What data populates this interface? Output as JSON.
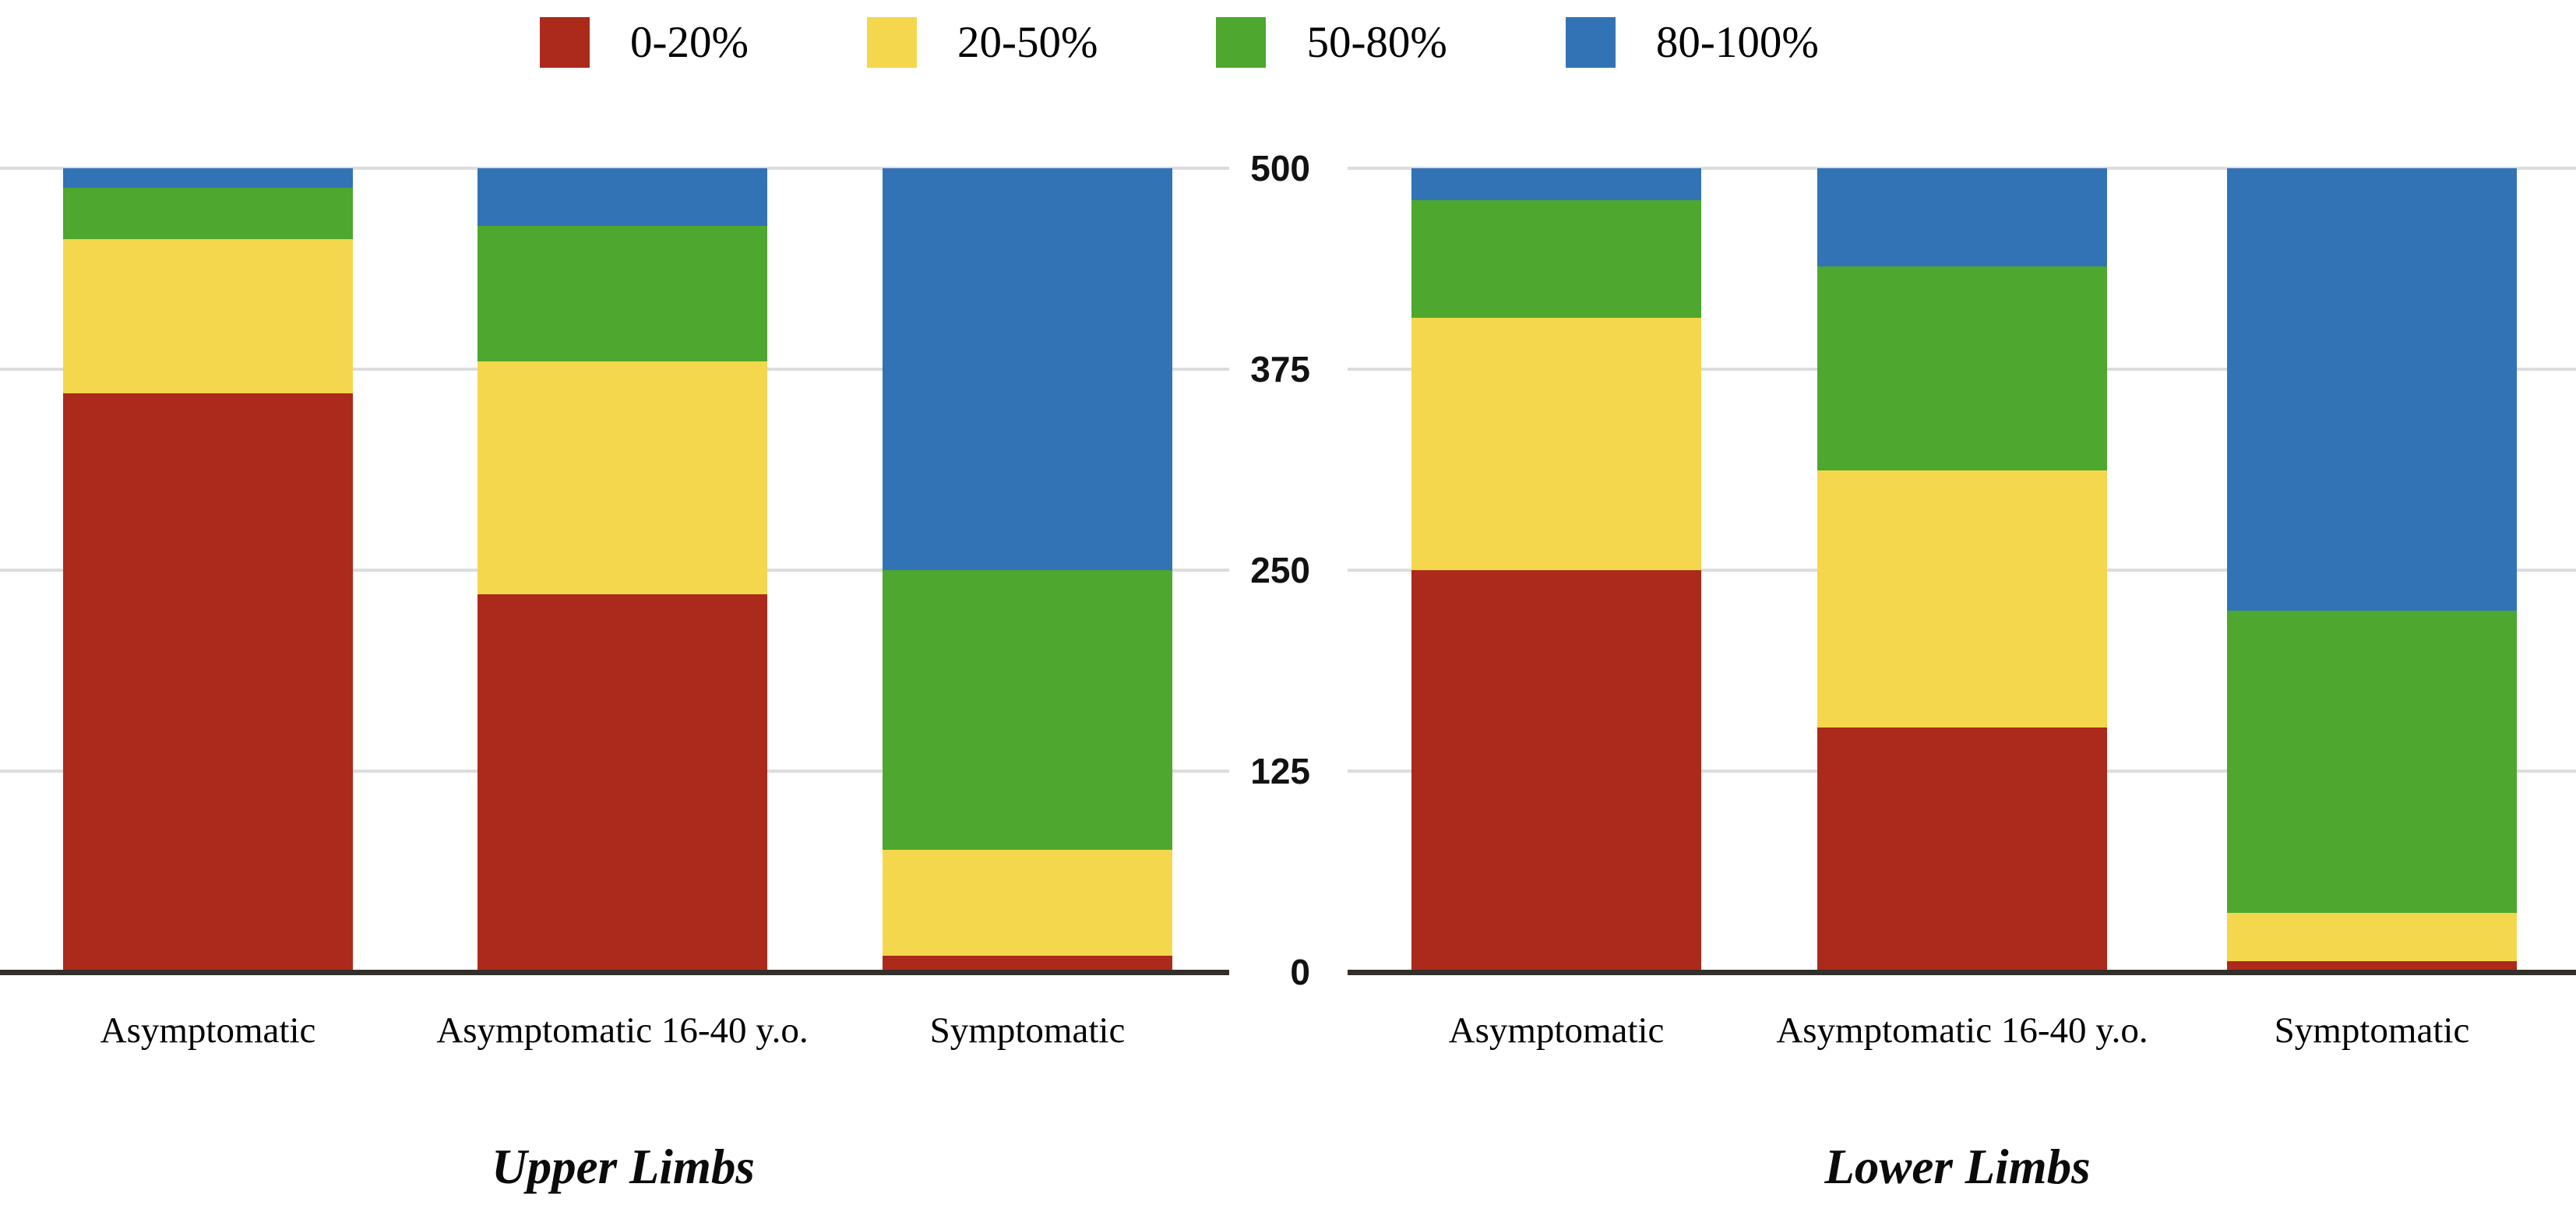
{
  "legend": {
    "items": [
      {
        "label": "0-20%",
        "color": "#ab2a1b"
      },
      {
        "label": "20-50%",
        "color": "#f5d74d"
      },
      {
        "label": "50-80%",
        "color": "#4ea72e"
      },
      {
        "label": "80-100%",
        "color": "#3273b5"
      }
    ]
  },
  "y_axis": {
    "tick_labels": [
      "0",
      "125",
      "250",
      "375",
      "500"
    ],
    "ticks": [
      0,
      125,
      250,
      375,
      500
    ]
  },
  "colors": {
    "segment_0_20": "#ab2a1b",
    "segment_20_50": "#f5d74d",
    "segment_50_80": "#4ea72e",
    "segment_80_100": "#3273b5",
    "gridline": "#dcdcdc",
    "axis_line": "#33302c",
    "tick_text": "#121212"
  },
  "chart_data": [
    {
      "type": "bar",
      "stacked": true,
      "title": "Upper Limbs",
      "categories": [
        "Asymptomatic",
        "Asymptomatic 16-40 y.o.",
        "Symptomatic"
      ],
      "series": [
        {
          "name": "0-20%",
          "color": "#ab2a1b",
          "values": [
            360,
            235,
            10
          ]
        },
        {
          "name": "20-50%",
          "color": "#f5d74d",
          "values": [
            96,
            145,
            66
          ]
        },
        {
          "name": "50-80%",
          "color": "#4ea72e",
          "values": [
            32,
            84,
            174
          ]
        },
        {
          "name": "80-100%",
          "color": "#3273b5",
          "values": [
            12,
            36,
            250
          ]
        }
      ],
      "xlabel": "",
      "ylabel": "",
      "ylim": [
        0,
        500
      ],
      "yticks": [
        0,
        125,
        250,
        375,
        500
      ],
      "show_y_tick_labels": false,
      "grid": true,
      "legend_position": "top"
    },
    {
      "type": "bar",
      "stacked": true,
      "title": "Lower Limbs",
      "categories": [
        "Asymptomatic",
        "Asymptomatic 16-40 y.o.",
        "Symptomatic"
      ],
      "series": [
        {
          "name": "0-20%",
          "color": "#ab2a1b",
          "values": [
            250,
            152,
            7
          ]
        },
        {
          "name": "20-50%",
          "color": "#f5d74d",
          "values": [
            157,
            160,
            30
          ]
        },
        {
          "name": "50-80%",
          "color": "#4ea72e",
          "values": [
            73,
            127,
            188
          ]
        },
        {
          "name": "80-100%",
          "color": "#3273b5",
          "values": [
            20,
            61,
            275
          ]
        }
      ],
      "xlabel": "",
      "ylabel": "",
      "ylim": [
        0,
        500
      ],
      "yticks": [
        0,
        125,
        250,
        375,
        500
      ],
      "show_y_tick_labels": true,
      "grid": true,
      "legend_position": "top"
    }
  ]
}
